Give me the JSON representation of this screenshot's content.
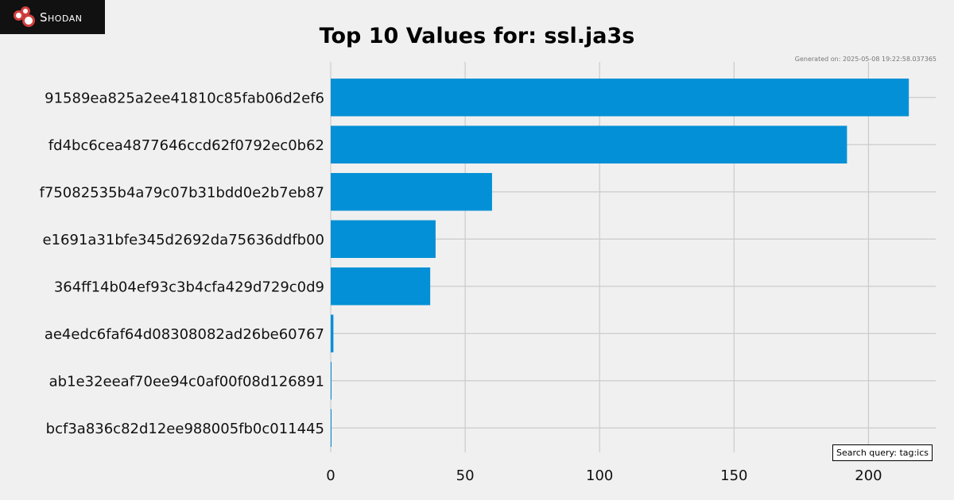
{
  "brand": {
    "name": "Shodan"
  },
  "generated": "Generated on: 2025-05-08 19:22:58.037365",
  "search_query": "Search query: tag:ics",
  "colors": {
    "bar": "#0390d6",
    "grid": "#cbcbcb",
    "background": "#f0f0f0"
  },
  "chart_data": {
    "type": "bar",
    "orientation": "horizontal",
    "title": "Top 10 Values for: ssl.ja3s",
    "xlabel": "",
    "ylabel": "",
    "xlim": [
      0,
      225
    ],
    "xticks": [
      0,
      50,
      100,
      150,
      200
    ],
    "grid": true,
    "categories": [
      "91589ea825a2ee41810c85fab06d2ef6",
      "fd4bc6cea4877646ccd62f0792ec0b62",
      "f75082535b4a79c07b31bdd0e2b7eb87",
      "e1691a31bfe345d2692da75636ddfb00",
      "364ff14b04ef93c3b4cfa429d729c0d9",
      "ae4edc6faf64d08308082ad26be60767",
      "ab1e32eeaf70ee94c0af00f08d126891",
      "bcf3a836c82d12ee988005fb0c011445"
    ],
    "values": [
      215,
      192,
      60,
      39,
      37,
      1,
      0.3,
      0.3
    ]
  }
}
